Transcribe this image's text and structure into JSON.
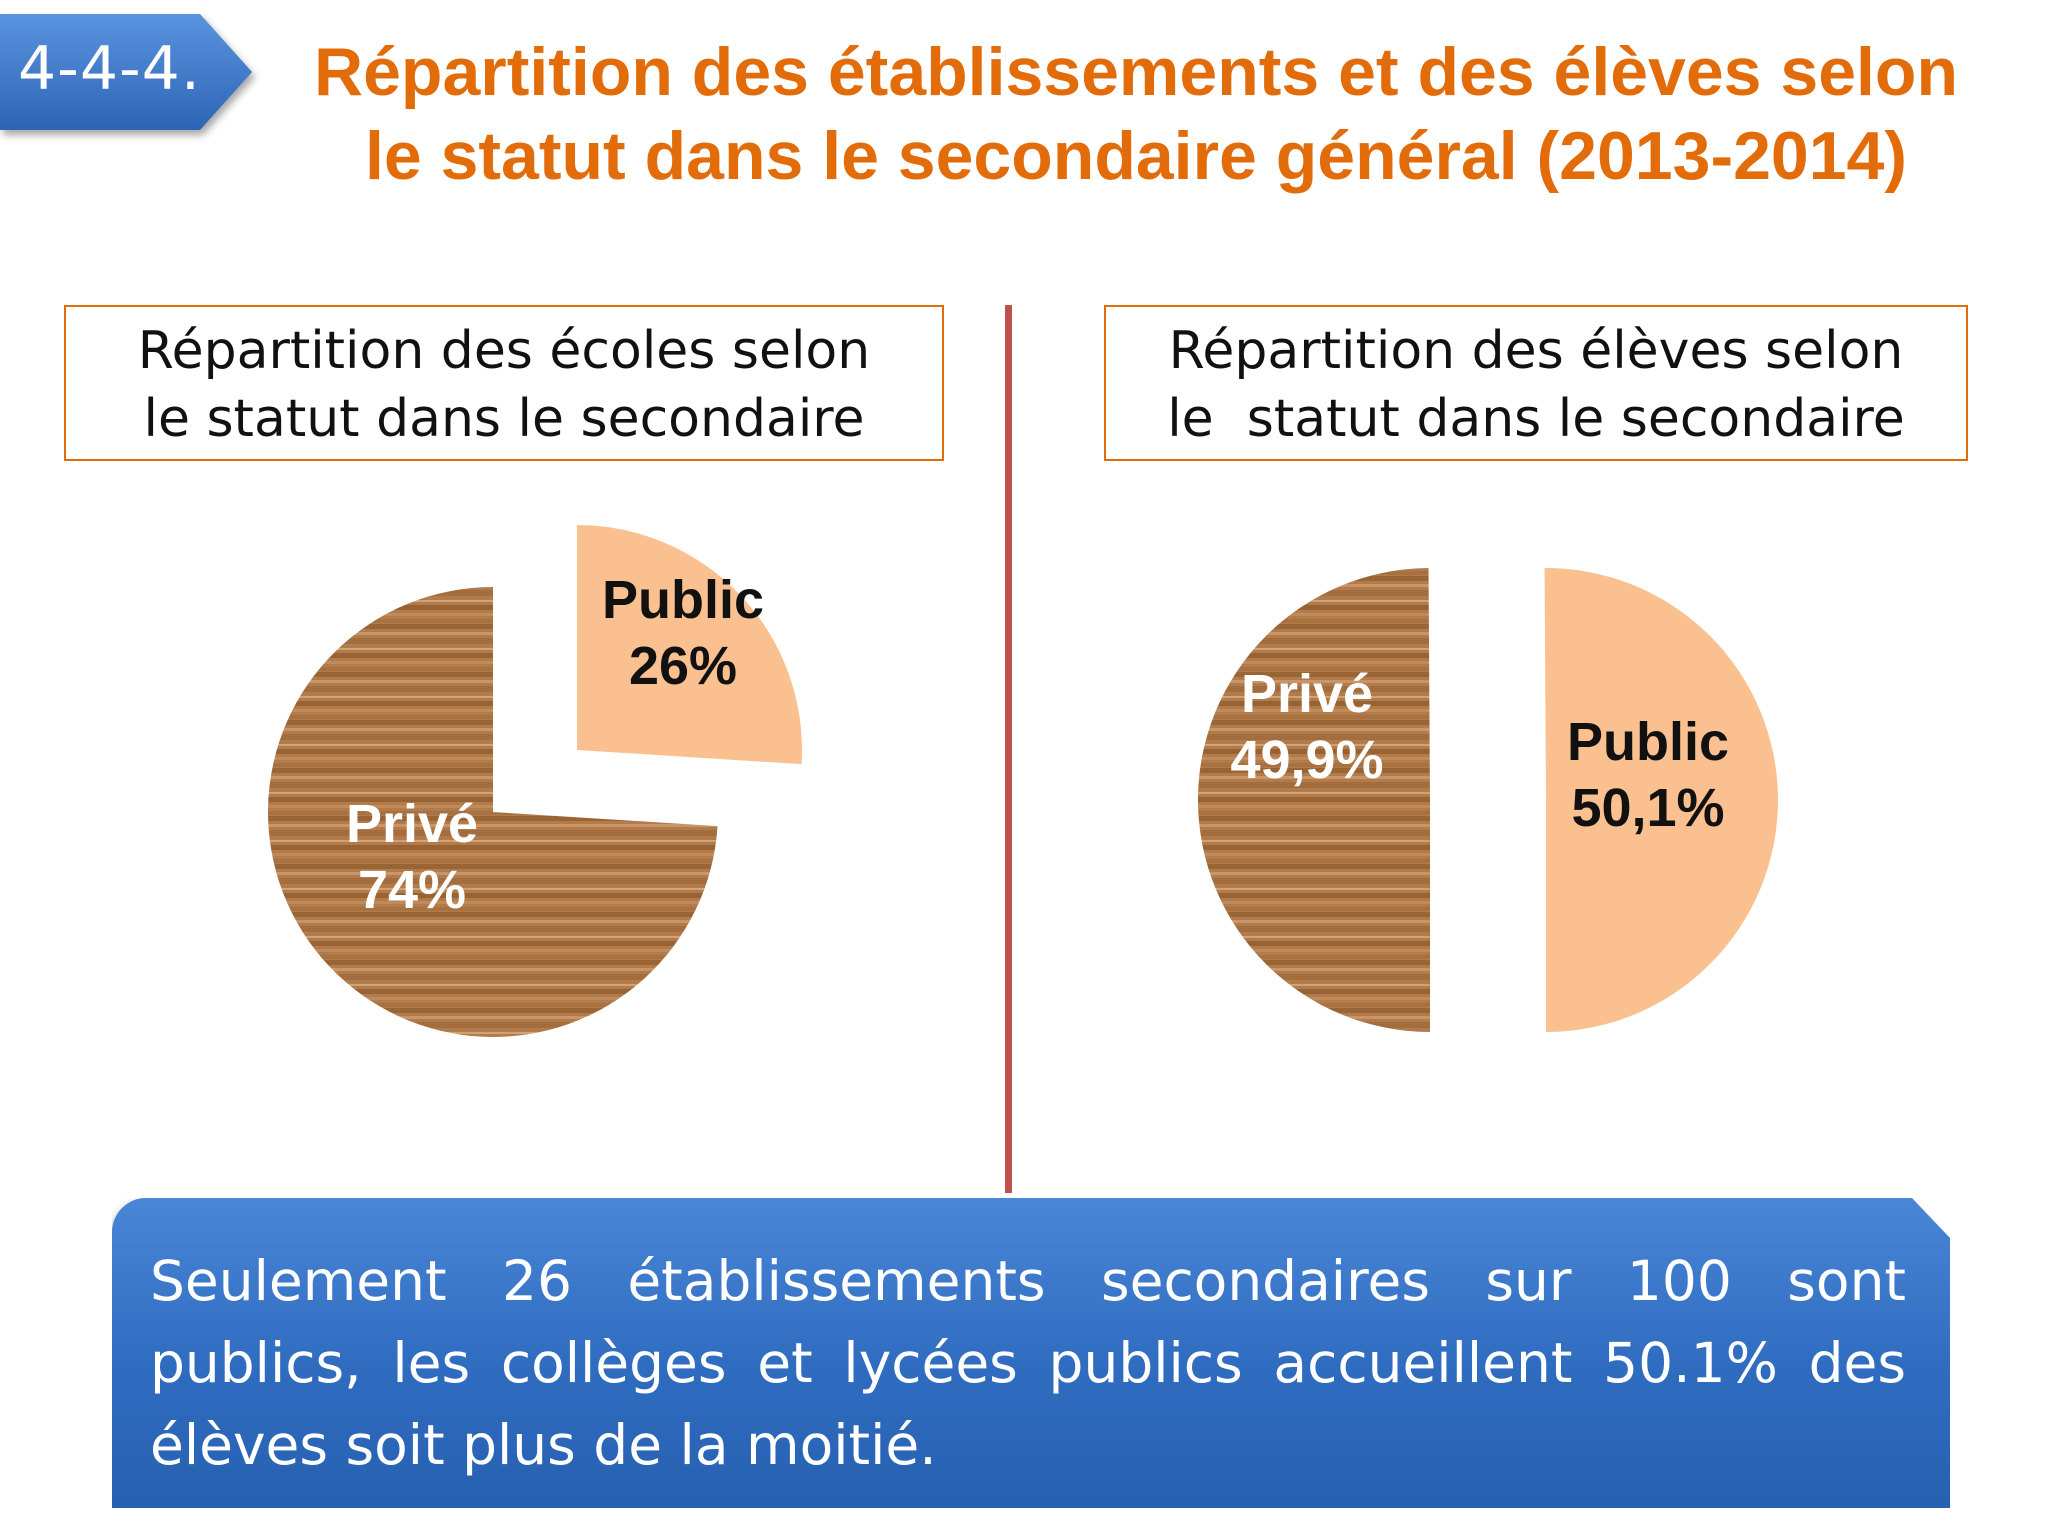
{
  "badge": "4-4-4.",
  "title": [
    "Répartition des établissements et des élèves selon",
    "le statut dans le secondaire général (2013-2014)"
  ],
  "colors": {
    "title": "#e36c0a",
    "public_slice": "#fac090",
    "prive_slice": "#b07a4a",
    "divider": "#c0504d",
    "note_bg": "#3a76c8"
  },
  "chart_data": [
    {
      "type": "pie",
      "title": [
        "Répartition des écoles selon",
        "le statut dans le secondaire"
      ],
      "slices": [
        {
          "name": "Public",
          "value": 26,
          "label": "26%",
          "color": "#fac090"
        },
        {
          "name": "Privé",
          "value": 74,
          "label": "74%",
          "color": "#b07a4a"
        }
      ]
    },
    {
      "type": "pie",
      "title": [
        "Répartition des élèves selon",
        "le  statut dans le secondaire"
      ],
      "slices": [
        {
          "name": "Privé",
          "value": 49.9,
          "label": "49,9%",
          "color": "#b07a4a"
        },
        {
          "name": "Public",
          "value": 50.1,
          "label": "50,1%",
          "color": "#fac090"
        }
      ]
    }
  ],
  "note": "Seulement 26 établissements secondaires sur 100 sont publics, les collèges et lycées publics accueillent  50.1% des élèves soit plus  de la moitié."
}
